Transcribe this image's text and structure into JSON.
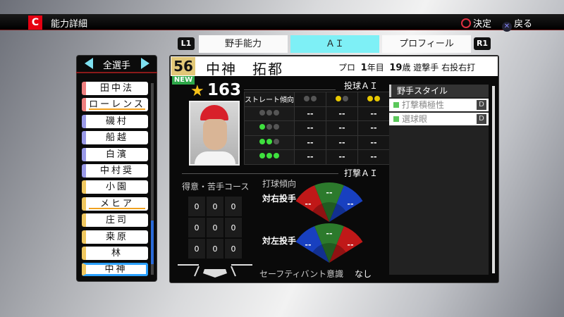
{
  "header": {
    "title": "能力詳細",
    "confirm": "決定",
    "back": "戻る",
    "logo": "C"
  },
  "tabs": {
    "l1": "L1",
    "r1": "R1",
    "items": [
      "野手能力",
      "ＡＩ",
      "プロフィール"
    ],
    "active": 1
  },
  "list": {
    "filter": "全選手",
    "players": [
      {
        "name": "田中法",
        "color": "#f08080",
        "underline": false
      },
      {
        "name": "ローレンス",
        "color": "#f08080",
        "underline": true
      },
      {
        "name": "磯村",
        "color": "#9a9ae8",
        "underline": false
      },
      {
        "name": "船越",
        "color": "#9a9ae8",
        "underline": false
      },
      {
        "name": "白濱",
        "color": "#9a9ae8",
        "underline": false
      },
      {
        "name": "中村奨",
        "color": "#9a9ae8",
        "underline": false
      },
      {
        "name": "小園",
        "color": "#f0c860",
        "underline": false
      },
      {
        "name": "メヒア",
        "color": "#f0c860",
        "underline": true
      },
      {
        "name": "庄司",
        "color": "#f0c860",
        "underline": false
      },
      {
        "name": "桒原",
        "color": "#f0c860",
        "underline": false
      },
      {
        "name": "林",
        "color": "#f0c860",
        "underline": false
      },
      {
        "name": "中神",
        "color": "#f0c860",
        "underline": false,
        "selected": true
      }
    ]
  },
  "player": {
    "number": "56",
    "badge": "NEW",
    "name": "中神　拓都",
    "pro": "プロ",
    "years": "1",
    "years_unit": "年目",
    "age": "19",
    "age_unit": "歳",
    "position": "遊撃手",
    "handed": "右投右打",
    "rating": "163"
  },
  "pitch_ai": {
    "title": "投球ＡＩ",
    "row_header": "ストレート傾向",
    "col_dots": [
      [
        "off",
        "off"
      ],
      [
        "y",
        "off"
      ],
      [
        "y",
        "y"
      ]
    ],
    "rows": [
      {
        "dots": [
          "off",
          "off",
          "off"
        ],
        "vals": [
          "--",
          "--",
          "--"
        ]
      },
      {
        "dots": [
          "g",
          "off",
          "off"
        ],
        "vals": [
          "--",
          "--",
          "--"
        ]
      },
      {
        "dots": [
          "g",
          "g",
          "off"
        ],
        "vals": [
          "--",
          "--",
          "--"
        ]
      },
      {
        "dots": [
          "g",
          "g",
          "g"
        ],
        "vals": [
          "--",
          "--",
          "--"
        ]
      }
    ]
  },
  "bat_ai": {
    "title": "打撃ＡＩ",
    "course_label": "得意・苦手コース",
    "course": [
      [
        "0",
        "0",
        "0"
      ],
      [
        "0",
        "0",
        "0"
      ],
      [
        "0",
        "0",
        "0"
      ]
    ],
    "tendency_label": "打球傾向",
    "vs_right": "対右投手",
    "vs_left": "対左投手",
    "vs_right_vals": [
      "--",
      "--",
      "--"
    ],
    "vs_left_vals": [
      "--",
      "--",
      "--"
    ],
    "bunt_label": "セーフティバント意識",
    "bunt_value": "なし"
  },
  "style": {
    "title": "野手スタイル",
    "items": [
      {
        "name": "打撃積極性",
        "grade": "D"
      },
      {
        "name": "選球眼",
        "grade": "D"
      }
    ]
  },
  "colors": {
    "red": "#c01818",
    "green": "#2c7a2c",
    "blue": "#1840c0",
    "tab_active": "#7ef0f6"
  }
}
